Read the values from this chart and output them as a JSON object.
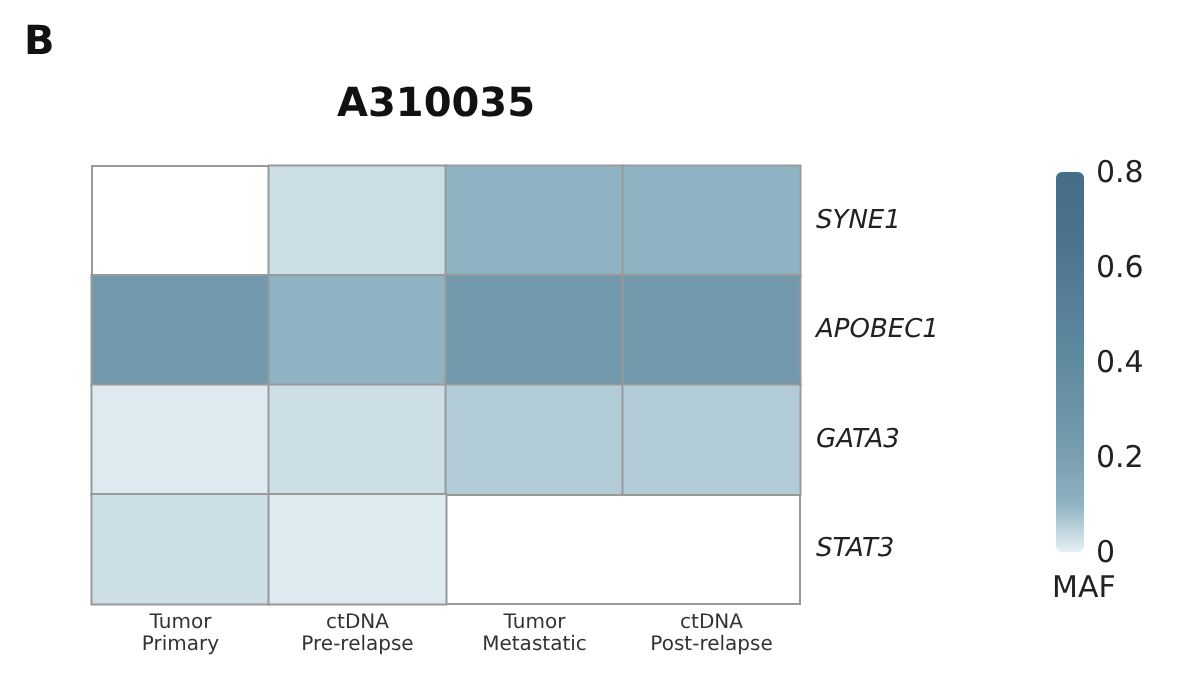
{
  "chart_data": {
    "type": "heatmap",
    "title": "A310035",
    "annotations": [
      "B"
    ],
    "categories": [
      "Tumor\nPrimary",
      "ctDNA\nPre-relapse",
      "Tumor\nMetastatic",
      "ctDNA\nPost-relapse"
    ],
    "y_categories": [
      "SYNE1",
      "APOBEC1",
      "GATA3",
      "STAT3"
    ],
    "cells": [
      [
        null,
        0.03,
        0.1,
        0.1
      ],
      [
        0.25,
        0.1,
        0.25,
        0.25
      ],
      [
        0.01,
        0.03,
        0.06,
        0.06
      ],
      [
        0.03,
        0.01,
        null,
        null
      ]
    ],
    "clabel": "MAF",
    "clim": [
      0,
      0.8
    ],
    "cticks": [
      0,
      0.2,
      0.4,
      0.6,
      0.8
    ],
    "colors": [
      "#e6f1f5",
      "#8fb3c3",
      "#7a9fb1",
      "#6b93a8",
      "#5f8ba0",
      "#57829a",
      "#4e7990",
      "#48718a",
      "#456f88"
    ]
  }
}
